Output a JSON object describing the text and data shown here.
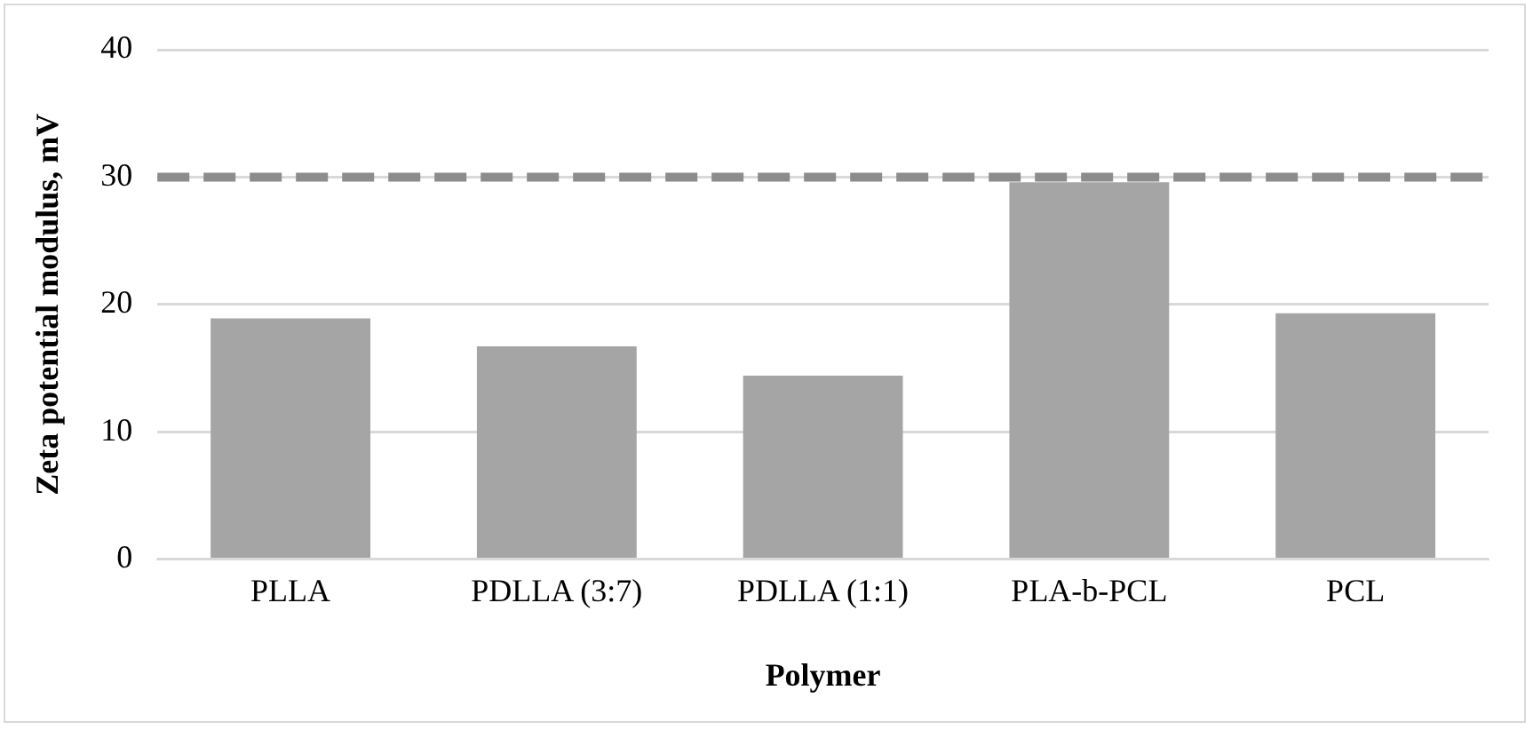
{
  "chart_data": {
    "type": "bar",
    "xlabel": "Polymer",
    "ylabel": "Zeta potential modulus, mV",
    "categories": [
      "PLLA",
      "PDLLA (3:7)",
      "PDLLA (1:1)",
      "PLA-b-PCL",
      "PCL"
    ],
    "values": [
      18.9,
      16.7,
      14.4,
      29.6,
      19.3
    ],
    "color": "#a5a5a5",
    "ylim": [
      0,
      40
    ],
    "yticks": [
      0,
      10,
      20,
      30,
      40
    ],
    "grid": "y",
    "ref_lines": [
      {
        "axis": "y",
        "value": 30,
        "color": "#8c8c8c",
        "line_style": "dashed"
      }
    ]
  }
}
